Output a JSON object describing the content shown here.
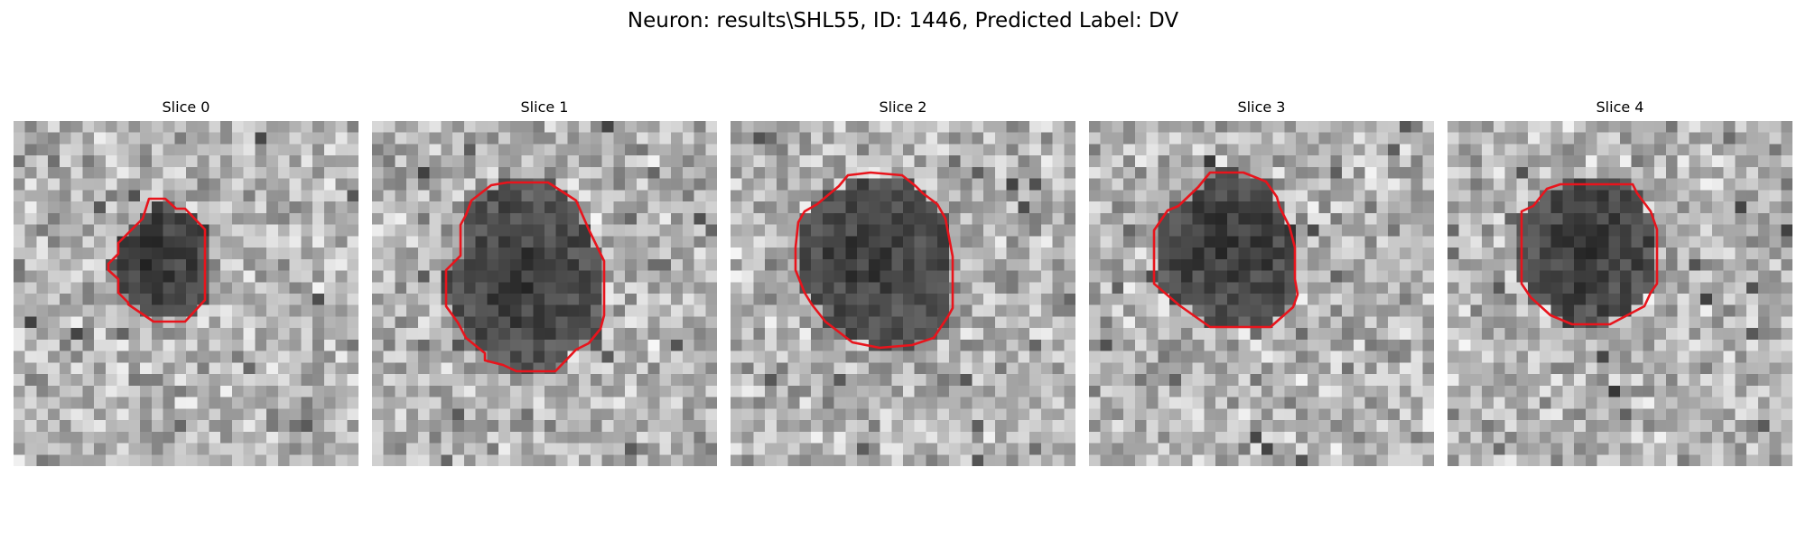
{
  "figure": {
    "title": "Neuron: results\\SHL55, ID: 1446, Predicted Label: DV"
  },
  "slices": [
    {
      "title": "Slice 0",
      "contour_color": "#e8141c"
    },
    {
      "title": "Slice 1",
      "contour_color": "#e8141c"
    },
    {
      "title": "Slice 2",
      "contour_color": "#e8141c"
    },
    {
      "title": "Slice 3",
      "contour_color": "#e8141c"
    },
    {
      "title": "Slice 4",
      "contour_color": "#e8141c"
    }
  ],
  "colormap": "gray"
}
